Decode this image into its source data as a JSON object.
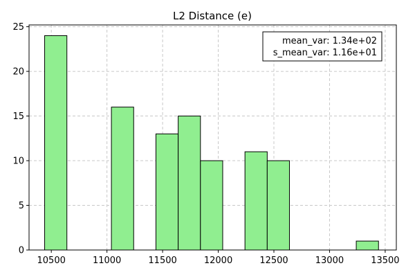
{
  "chart_data": {
    "type": "bar",
    "title": "L2 Distance (e)",
    "xlabel": "",
    "ylabel": "",
    "xlim": [
      10300,
      13600
    ],
    "ylim": [
      0,
      25.2
    ],
    "xticks": [
      10500,
      11000,
      11500,
      12000,
      12500,
      13000,
      13500
    ],
    "yticks": [
      0,
      5,
      10,
      15,
      20,
      25
    ],
    "grid": true,
    "bar_color": "#90ee90",
    "edge_color": "#000000",
    "bins": [
      {
        "x0": 10440,
        "x1": 10640,
        "count": 24
      },
      {
        "x0": 11040,
        "x1": 11240,
        "count": 16
      },
      {
        "x0": 11440,
        "x1": 11640,
        "count": 13
      },
      {
        "x0": 11640,
        "x1": 11840,
        "count": 15
      },
      {
        "x0": 11840,
        "x1": 12040,
        "count": 10
      },
      {
        "x0": 12240,
        "x1": 12440,
        "count": 11
      },
      {
        "x0": 12440,
        "x1": 12640,
        "count": 10
      },
      {
        "x0": 13240,
        "x1": 13440,
        "count": 1
      }
    ],
    "annotation": {
      "placement": "top-right",
      "lines": [
        "mean_var: 1.34e+02",
        "s_mean_var: 1.16e+01"
      ]
    }
  }
}
